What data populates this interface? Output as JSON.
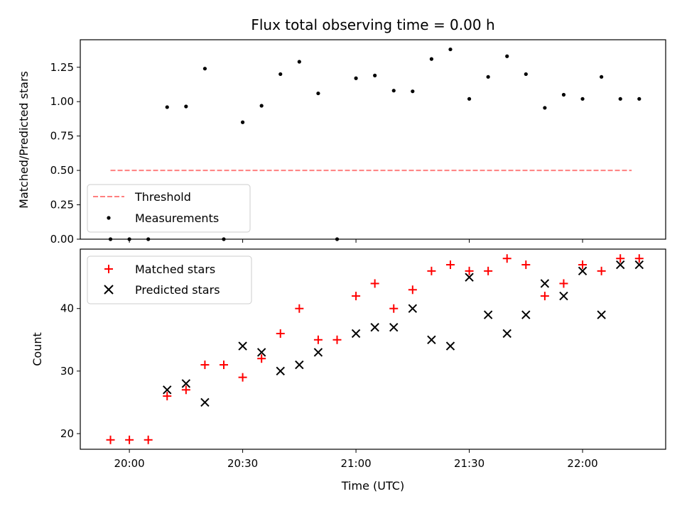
{
  "chart_data": [
    {
      "type": "scatter",
      "title": "Flux total observing time = 0.00 h",
      "ylabel": "Matched/Predicted stars",
      "xlabel": "",
      "ylim": [
        0,
        1.45
      ],
      "yticks": [
        "0.00",
        "0.25",
        "0.50",
        "0.75",
        "1.00",
        "1.25"
      ],
      "grid": false,
      "legend_position": "lower-left",
      "series": [
        {
          "name": "Threshold",
          "style": "dashed-line",
          "color": "#ff7f7f",
          "x": [
            "19:55",
            "22:13"
          ],
          "y": [
            0.5,
            0.5
          ]
        },
        {
          "name": "Measurements",
          "style": "dot",
          "color": "#000000",
          "x": [
            "19:55",
            "20:00",
            "20:05",
            "20:10",
            "20:15",
            "20:20",
            "20:25",
            "20:30",
            "20:35",
            "20:40",
            "20:45",
            "20:50",
            "20:55",
            "21:00",
            "21:05",
            "21:10",
            "21:15",
            "21:20",
            "21:25",
            "21:30",
            "21:35",
            "21:40",
            "21:45",
            "21:50",
            "21:55",
            "22:00",
            "22:05",
            "22:10",
            "22:15"
          ],
          "y": [
            0.0,
            0.0,
            0.0,
            0.96,
            0.965,
            1.24,
            0.0,
            0.85,
            0.97,
            1.2,
            1.29,
            1.06,
            0.0,
            1.17,
            1.19,
            1.08,
            1.075,
            1.31,
            1.38,
            1.02,
            1.18,
            1.33,
            1.2,
            0.955,
            1.05,
            1.02,
            1.18,
            1.02,
            1.02
          ]
        }
      ]
    },
    {
      "type": "scatter",
      "title": "",
      "xlabel": "Time (UTC)",
      "ylabel": "Count",
      "ylim": [
        17.5,
        49.5
      ],
      "yticks": [
        "20",
        "30",
        "40"
      ],
      "xticks": [
        "20:00",
        "20:30",
        "21:00",
        "21:30",
        "22:00"
      ],
      "grid": false,
      "legend_position": "upper-left",
      "series": [
        {
          "name": "Matched stars",
          "marker": "plus",
          "color": "#ff0000",
          "x": [
            "19:55",
            "20:00",
            "20:05",
            "20:10",
            "20:15",
            "20:20",
            "20:25",
            "20:30",
            "20:35",
            "20:40",
            "20:45",
            "20:50",
            "20:55",
            "21:00",
            "21:05",
            "21:10",
            "21:15",
            "21:20",
            "21:25",
            "21:30",
            "21:35",
            "21:40",
            "21:45",
            "21:50",
            "21:55",
            "22:00",
            "22:05",
            "22:10",
            "22:15"
          ],
          "y": [
            19,
            19,
            19,
            26,
            27,
            31,
            31,
            29,
            32,
            36,
            40,
            35,
            35,
            42,
            44,
            40,
            43,
            46,
            47,
            46,
            46,
            48,
            47,
            42,
            44,
            47,
            46,
            48,
            48
          ]
        },
        {
          "name": "Predicted stars",
          "marker": "x",
          "color": "#000000",
          "x": [
            "20:10",
            "20:15",
            "20:20",
            "20:30",
            "20:35",
            "20:40",
            "20:45",
            "20:50",
            "21:00",
            "21:05",
            "21:10",
            "21:15",
            "21:20",
            "21:25",
            "21:30",
            "21:35",
            "21:40",
            "21:45",
            "21:50",
            "21:55",
            "22:00",
            "22:05",
            "22:10",
            "22:15"
          ],
          "y": [
            27,
            28,
            25,
            34,
            33,
            30,
            31,
            33,
            36,
            37,
            37,
            40,
            35,
            34,
            45,
            39,
            36,
            39,
            44,
            42,
            46,
            39,
            47,
            47
          ]
        }
      ]
    }
  ]
}
